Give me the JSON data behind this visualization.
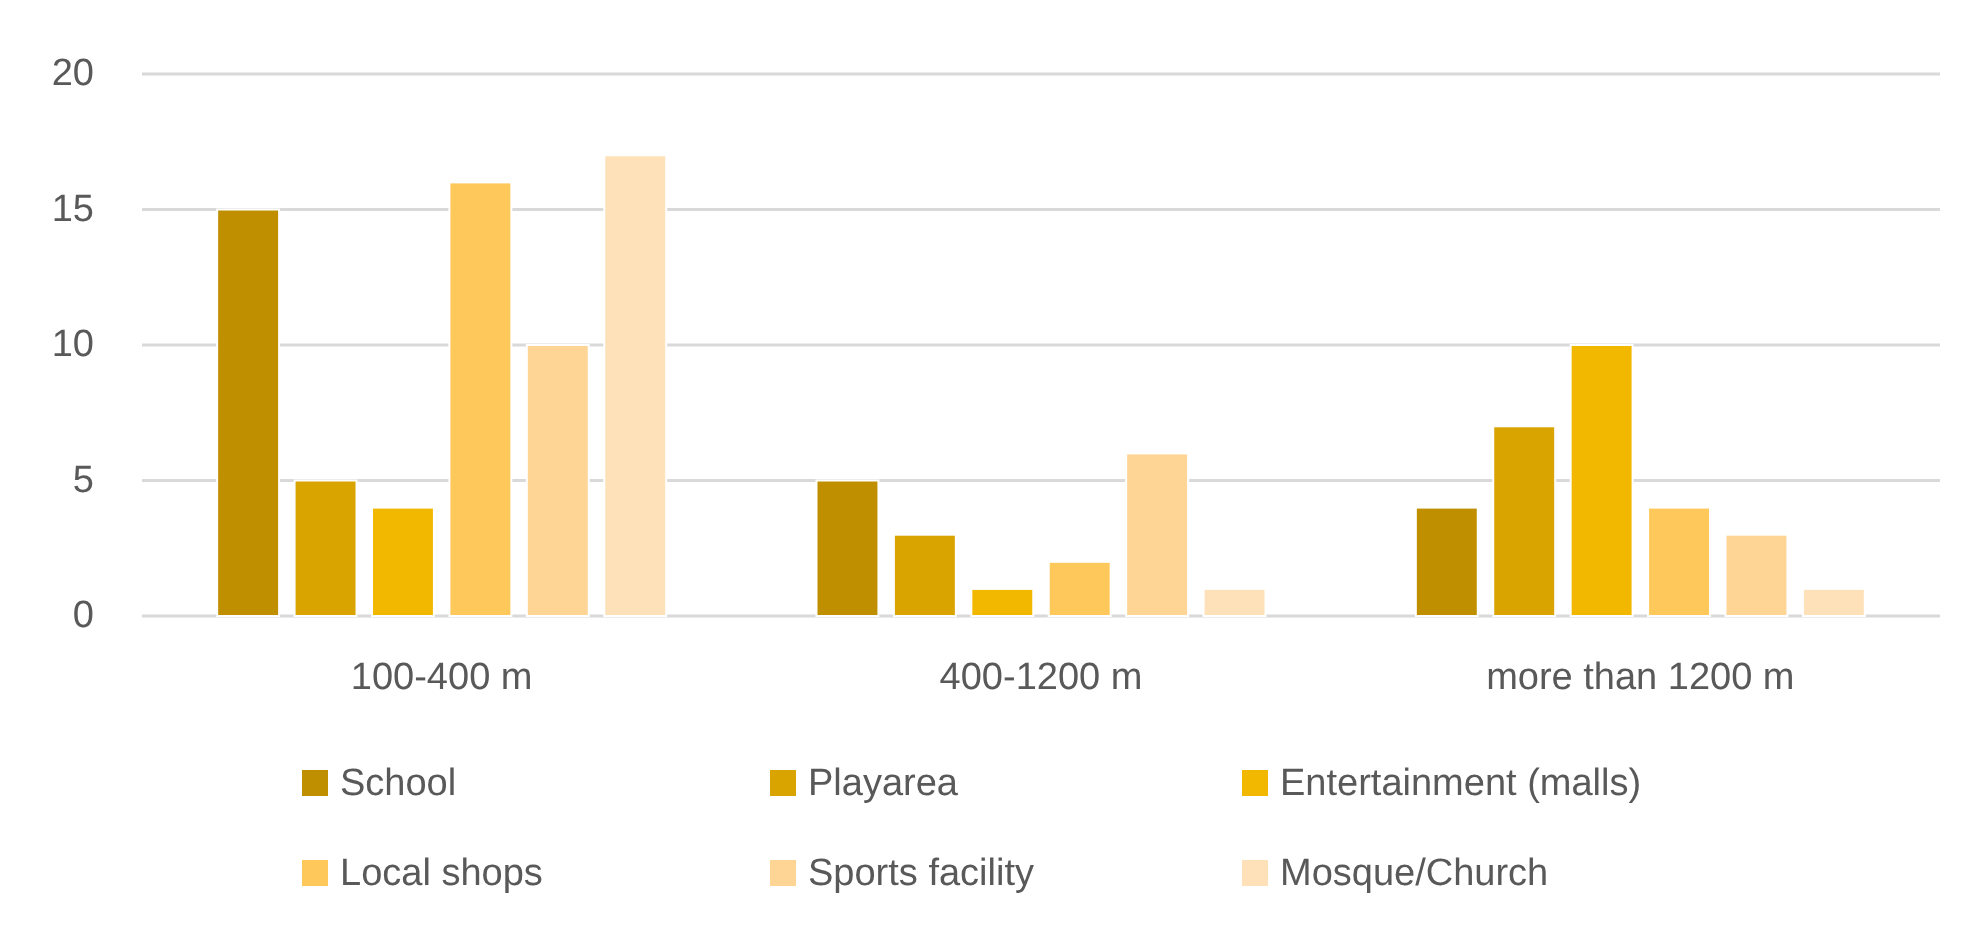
{
  "chart_data": {
    "type": "bar",
    "categories": [
      "100-400 m",
      "400-1200 m",
      "more than 1200 m"
    ],
    "series": [
      {
        "name": "School",
        "color": "#bf8f00",
        "values": [
          15,
          5,
          4
        ]
      },
      {
        "name": "Playarea",
        "color": "#d9a300",
        "values": [
          5,
          3,
          7
        ]
      },
      {
        "name": "Entertainment (malls)",
        "color": "#f2b800",
        "values": [
          4,
          1,
          10
        ]
      },
      {
        "name": "Local shops",
        "color": "#ffc85a",
        "values": [
          16,
          2,
          4
        ]
      },
      {
        "name": "Sports facility",
        "color": "#ffd596",
        "values": [
          10,
          6,
          3
        ]
      },
      {
        "name": "Mosque/Church",
        "color": "#ffe1b9",
        "values": [
          17,
          1,
          1
        ]
      }
    ],
    "ylim": [
      0,
      20
    ],
    "yticks": [
      0,
      5,
      10,
      15,
      20
    ],
    "grid": "y",
    "legend": "bottom"
  }
}
